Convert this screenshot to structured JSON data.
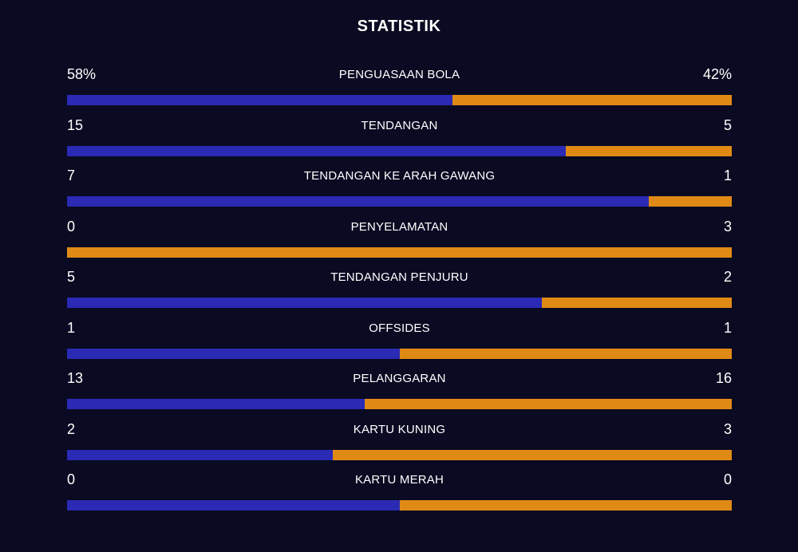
{
  "title": "STATISTIK",
  "colors": {
    "background": "#0a0a22",
    "home": "#2a2ab4",
    "away": "#e08a16",
    "text": "#ffffff"
  },
  "stats": [
    {
      "label": "PENGUASAAN BOLA",
      "home": "58%",
      "away": "42%",
      "home_share": 0.58
    },
    {
      "label": "TENDANGAN",
      "home": "15",
      "away": "5",
      "home_share": 0.75
    },
    {
      "label": "TENDANGAN KE ARAH GAWANG",
      "home": "7",
      "away": "1",
      "home_share": 0.875
    },
    {
      "label": "PENYELAMATAN",
      "home": "0",
      "away": "3",
      "home_share": 0.0
    },
    {
      "label": "TENDANGAN PENJURU",
      "home": "5",
      "away": "2",
      "home_share": 0.714
    },
    {
      "label": "OFFSIDES",
      "home": "1",
      "away": "1",
      "home_share": 0.5
    },
    {
      "label": "PELANGGARAN",
      "home": "13",
      "away": "16",
      "home_share": 0.448
    },
    {
      "label": "KARTU KUNING",
      "home": "2",
      "away": "3",
      "home_share": 0.4
    },
    {
      "label": "KARTU MERAH",
      "home": "0",
      "away": "0",
      "home_share": 0.5
    }
  ]
}
